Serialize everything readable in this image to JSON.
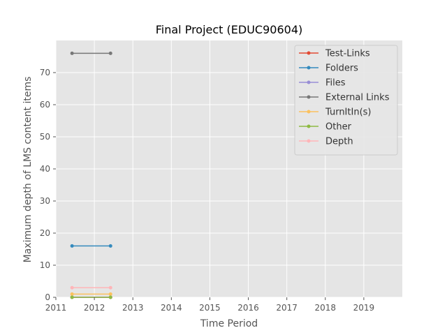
{
  "chart_data": {
    "type": "line",
    "title": "Final Project (EDUC90604)",
    "xlabel": "Time Period",
    "ylabel": "Maximum depth of LMS content items",
    "xlim": [
      2011,
      2020
    ],
    "ylim": [
      0,
      80
    ],
    "x_ticks": [
      2011,
      2012,
      2013,
      2014,
      2015,
      2016,
      2017,
      2018,
      2019
    ],
    "y_ticks": [
      0,
      10,
      20,
      30,
      40,
      50,
      60,
      70
    ],
    "grid": true,
    "legend_position": "top-right",
    "x": [
      2011.42,
      2012.42
    ],
    "series": [
      {
        "name": "Test-Links",
        "color": "#E24A33",
        "values": [
          0,
          0
        ]
      },
      {
        "name": "Folders",
        "color": "#348ABD",
        "values": [
          16,
          16
        ]
      },
      {
        "name": "Files",
        "color": "#988ED5",
        "values": [
          0,
          0
        ]
      },
      {
        "name": "External Links",
        "color": "#777777",
        "values": [
          76,
          76
        ]
      },
      {
        "name": "TurnItIn(s)",
        "color": "#FBC15E",
        "values": [
          1,
          1
        ]
      },
      {
        "name": "Other",
        "color": "#8EBA42",
        "values": [
          0,
          0
        ]
      },
      {
        "name": "Depth",
        "color": "#FFB5B8",
        "values": [
          3,
          3
        ]
      }
    ]
  }
}
